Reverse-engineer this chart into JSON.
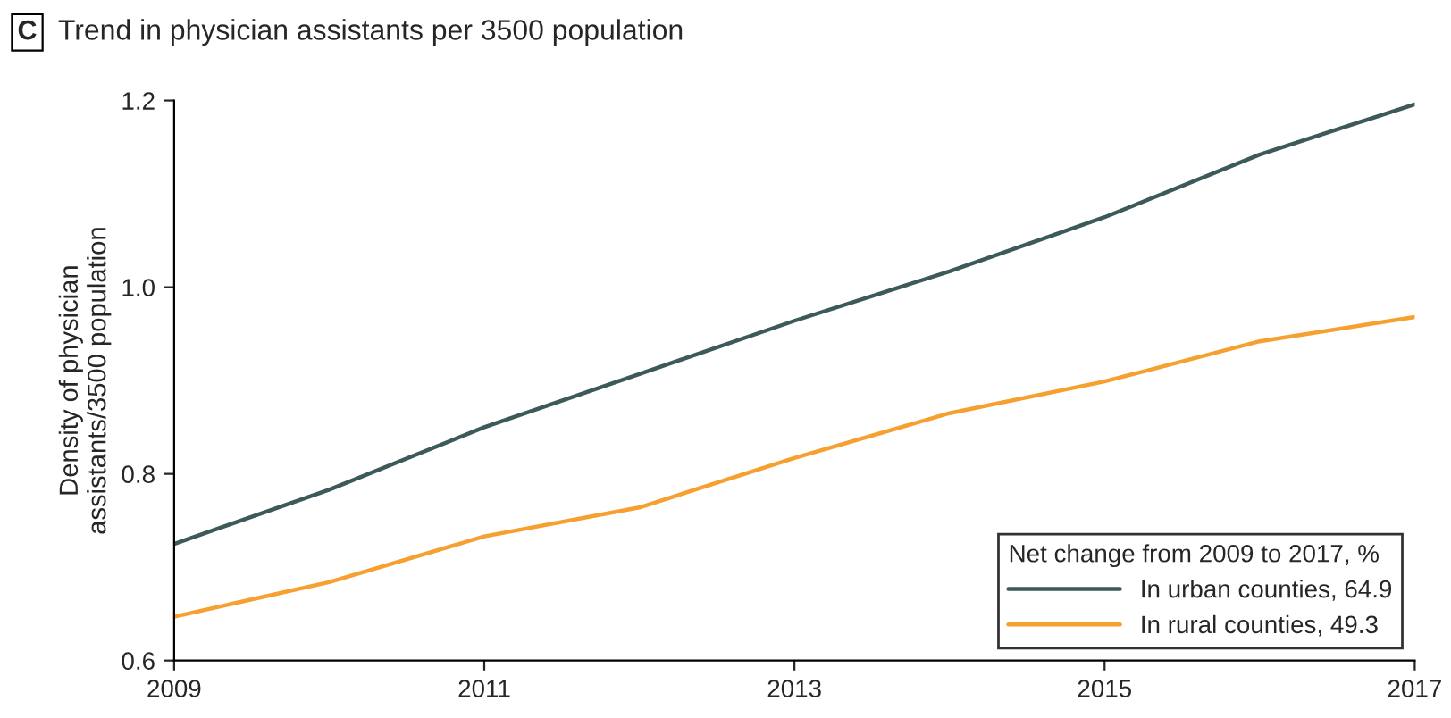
{
  "chart_data": {
    "type": "line",
    "title": "Trend in physician assistants per 3500 population",
    "annotations": [
      "C"
    ],
    "ylabel": "Density of physician\nassistants/3500 population",
    "legend_title": "Net change from 2009 to 2017, %",
    "x": [
      2009,
      2010,
      2011,
      2012,
      2013,
      2014,
      2015,
      2016,
      2017
    ],
    "series": [
      {
        "name": "In urban counties, 64.9",
        "color": "#3d5a5b",
        "values": [
          0.725,
          0.783,
          0.85,
          0.907,
          0.964,
          1.017,
          1.075,
          1.142,
          1.196
        ]
      },
      {
        "name": "In rural counties, 49.3",
        "color": "#f5a030",
        "values": [
          0.647,
          0.684,
          0.733,
          0.764,
          0.817,
          0.865,
          0.899,
          0.942,
          0.968
        ]
      }
    ],
    "xlim": [
      2009,
      2017
    ],
    "xticks": [
      2009,
      2011,
      2013,
      2015,
      2017
    ],
    "ylim": [
      0.6,
      1.2
    ],
    "yticks": [
      {
        "value": 0.6,
        "label": "0.6"
      },
      {
        "value": 0.8,
        "label": "0.8"
      },
      {
        "value": 1.0,
        "label": "1.0"
      },
      {
        "value": 1.2,
        "label": "1.2"
      }
    ],
    "grid": false,
    "legend": "bottom right",
    "marker": "none",
    "line_style": "solid"
  }
}
